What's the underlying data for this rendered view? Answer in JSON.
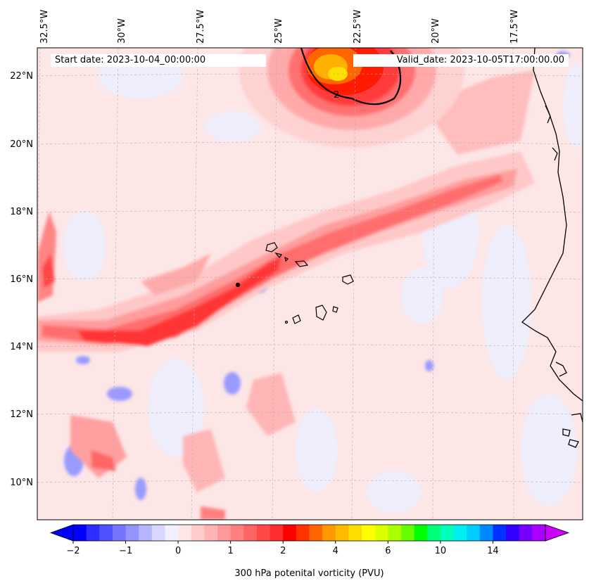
{
  "map": {
    "start_label": "Start date: 2023-10-04_00:00:00",
    "valid_label": "Valid_date: 2023-10-05T17:00:00.00",
    "lon_labels": [
      "32.5°W",
      "30°W",
      "27.5°W",
      "25°W",
      "22.5°W",
      "20°W",
      "17.5°W"
    ],
    "lat_labels": [
      "22°N",
      "20°N",
      "18°N",
      "16°N",
      "14°N",
      "12°N",
      "10°N"
    ],
    "contour_label": "2",
    "colors": {
      "ocean_background": "#fde6e6",
      "coastline": "#000000",
      "gridline": "#b0b0b0"
    }
  },
  "colorbar": {
    "label": "300 hPa potenital vorticity (PVU)",
    "tick_labels": [
      "−2",
      "−1",
      "0",
      "1",
      "2",
      "4",
      "6",
      "10",
      "14"
    ],
    "colors": [
      "#0000ff",
      "#2e2eff",
      "#5050ff",
      "#7474ff",
      "#9494ff",
      "#b6b6ff",
      "#d6d6ff",
      "#f0f0ff",
      "#ffe6e6",
      "#ffcccc",
      "#ffb3b3",
      "#ff9999",
      "#ff7f7f",
      "#ff6464",
      "#ff4848",
      "#ff2e2e",
      "#ff0000",
      "#ff3300",
      "#ff6600",
      "#ff9900",
      "#ffbb00",
      "#ffdd00",
      "#ffff00",
      "#ddff00",
      "#aaff00",
      "#66ff00",
      "#00ff00",
      "#00ff77",
      "#00ffbb",
      "#00eeee",
      "#00ccff",
      "#0088ff",
      "#0033ff",
      "#3300ff",
      "#7700ff",
      "#aa00ff"
    ],
    "extend_low_color": "#0000ff",
    "extend_high_color": "#cc00ff"
  }
}
